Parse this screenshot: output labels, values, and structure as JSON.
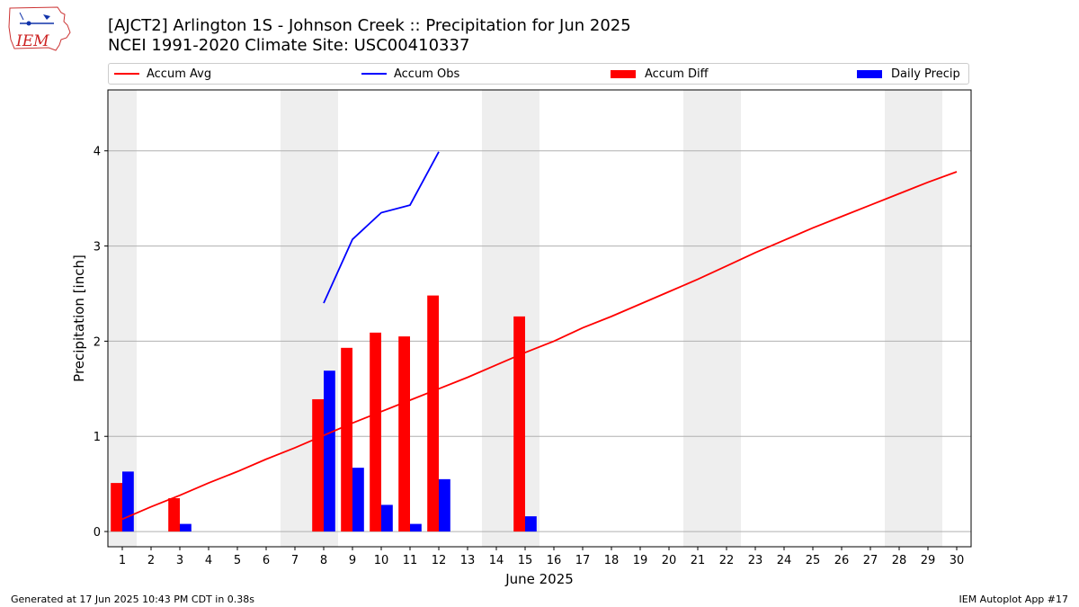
{
  "header": {
    "title_line1": "[AJCT2] Arlington 1S - Johnson Creek :: Precipitation for Jun 2025",
    "title_line2": "NCEI 1991-2020 Climate Site: USC00410337",
    "logo_text": "IEM"
  },
  "legend": {
    "accum_avg": "Accum Avg",
    "accum_obs": "Accum Obs",
    "accum_diff": "Accum Diff",
    "daily_precip": "Daily Precip"
  },
  "footer": {
    "left": "Generated at 17 Jun 2025 10:43 PM CDT in 0.38s",
    "right": "IEM Autoplot App #17"
  },
  "colors": {
    "accum_avg": "#ff0000",
    "accum_obs": "#0000ff",
    "accum_diff": "#ff0000",
    "daily_precip": "#0000ff",
    "weekend_shade": "#eeeeee",
    "grid": "#b0b0b0"
  },
  "chart_data": {
    "type": "bar",
    "xlabel": "June 2025",
    "ylabel": "Precipitation [inch]",
    "xlim": [
      0.5,
      30.5
    ],
    "ylim": [
      -0.16,
      4.64
    ],
    "x_ticks": [
      1,
      2,
      3,
      4,
      5,
      6,
      7,
      8,
      9,
      10,
      11,
      12,
      13,
      14,
      15,
      16,
      17,
      18,
      19,
      20,
      21,
      22,
      23,
      24,
      25,
      26,
      27,
      28,
      29,
      30
    ],
    "y_ticks": [
      0,
      1,
      2,
      3,
      4
    ],
    "grid": "horizontal",
    "legend_position": "top",
    "weekend_days": [
      1,
      7,
      8,
      14,
      15,
      21,
      22,
      28,
      29
    ],
    "series": [
      {
        "name": "Accum Avg",
        "kind": "line",
        "x": [
          1,
          2,
          3,
          4,
          5,
          6,
          7,
          8,
          9,
          10,
          11,
          12,
          13,
          14,
          15,
          16,
          17,
          18,
          19,
          20,
          21,
          22,
          23,
          24,
          25,
          26,
          27,
          28,
          29,
          30
        ],
        "values": [
          0.13,
          0.26,
          0.38,
          0.51,
          0.63,
          0.76,
          0.88,
          1.01,
          1.14,
          1.26,
          1.38,
          1.5,
          1.62,
          1.75,
          1.88,
          2.0,
          2.14,
          2.26,
          2.39,
          2.52,
          2.65,
          2.79,
          2.93,
          3.06,
          3.19,
          3.31,
          3.43,
          3.55,
          3.67,
          3.78
        ]
      },
      {
        "name": "Accum Obs",
        "kind": "line",
        "x": [
          8,
          9,
          10,
          11,
          12
        ],
        "values": [
          2.4,
          3.07,
          3.35,
          3.43,
          3.99
        ]
      },
      {
        "name": "Accum Diff",
        "kind": "bar",
        "x": [
          1,
          3,
          8,
          9,
          10,
          11,
          12,
          15
        ],
        "values": [
          0.51,
          0.35,
          1.39,
          1.93,
          2.09,
          2.05,
          2.48,
          2.26
        ]
      },
      {
        "name": "Daily Precip",
        "kind": "bar",
        "x": [
          1,
          3,
          8,
          9,
          10,
          11,
          12,
          15
        ],
        "values": [
          0.63,
          0.08,
          1.69,
          0.67,
          0.28,
          0.08,
          0.55,
          0.16
        ]
      }
    ]
  }
}
